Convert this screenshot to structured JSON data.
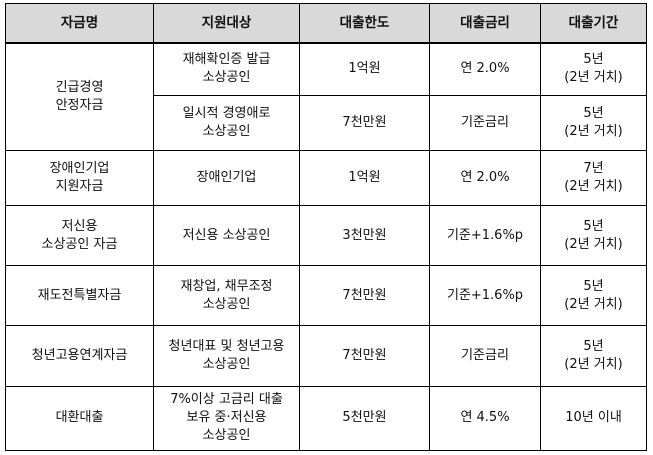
{
  "table": {
    "headers": [
      "자금명",
      "지원대상",
      "대출한도",
      "대출금리",
      "대출기간"
    ],
    "rows": [
      {
        "fund": "긴급경영\n안정자금",
        "target": "재해확인증 발급\n소상공인",
        "limit": "1억원",
        "rate": "연 2.0%",
        "period": "5년\n(2년 거치)"
      },
      {
        "target": "일시적 경영애로\n소상공인",
        "limit": "7천만원",
        "rate": "기준금리",
        "period": "5년\n(2년 거치)"
      },
      {
        "fund": "장애인기업\n지원자금",
        "target": "장애인기업",
        "limit": "1억원",
        "rate": "연 2.0%",
        "period": "7년\n(2년 거치)"
      },
      {
        "fund": "저신용\n소상공인 자금",
        "target": "저신용 소상공인",
        "limit": "3천만원",
        "rate": "기준+1.6%p",
        "period": "5년\n(2년 거치)"
      },
      {
        "fund": "재도전특별자금",
        "target": "재창업, 채무조정\n소상공인",
        "limit": "7천만원",
        "rate": "기준+1.6%p",
        "period": "5년\n(2년 거치)"
      },
      {
        "fund": "청년고용연계자금",
        "target": "청년대표 및 청년고용\n소상공인",
        "limit": "7천만원",
        "rate": "기준금리",
        "period": "5년\n(2년 거치)"
      },
      {
        "fund": "대환대출",
        "target": "7%이상 고금리 대출\n보유 중·저신용\n소상공인",
        "limit": "5천만원",
        "rate": "연 4.5%",
        "period": "10년 이내"
      }
    ]
  }
}
